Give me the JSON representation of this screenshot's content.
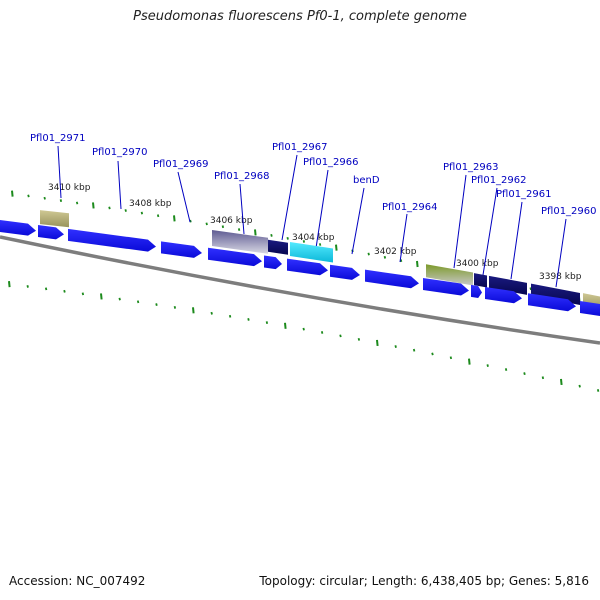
{
  "title": "Pseudomonas fluorescens Pf0-1, complete genome",
  "footer": {
    "accession": "Accession: NC_007492",
    "summary": "Topology: circular; Length: 6,438,405 bp; Genes: 5,816"
  },
  "colors": {
    "cds": "#1a1aee",
    "cds_dark": "#0c0c6e",
    "cds_cyan": "#22d8ee",
    "cds_gray": "#9d9ab8",
    "cds_khaki": "#b3ae74",
    "cds_olive": "#6f8d22",
    "backbone": "#7d7d7d",
    "tick": "#1c8a1c",
    "label": "#0000c0"
  },
  "scale": [
    {
      "label": "3410 kbp"
    },
    {
      "label": "3408 kbp"
    },
    {
      "label": "3406 kbp"
    },
    {
      "label": "3404 kbp"
    },
    {
      "label": "3402 kbp"
    },
    {
      "label": "3400 kbp"
    },
    {
      "label": "3398 kbp"
    }
  ],
  "gene_labels": [
    {
      "text": "Pfl01_2971"
    },
    {
      "text": "Pfl01_2970"
    },
    {
      "text": "Pfl01_2969"
    },
    {
      "text": "Pfl01_2968"
    },
    {
      "text": "Pfl01_2967"
    },
    {
      "text": "Pfl01_2966"
    },
    {
      "text": "benD"
    },
    {
      "text": "Pfl01_2964"
    },
    {
      "text": "Pfl01_2963"
    },
    {
      "text": "Pfl01_2962"
    },
    {
      "text": "Pfl01_2961"
    },
    {
      "text": "Pfl01_2960"
    }
  ]
}
